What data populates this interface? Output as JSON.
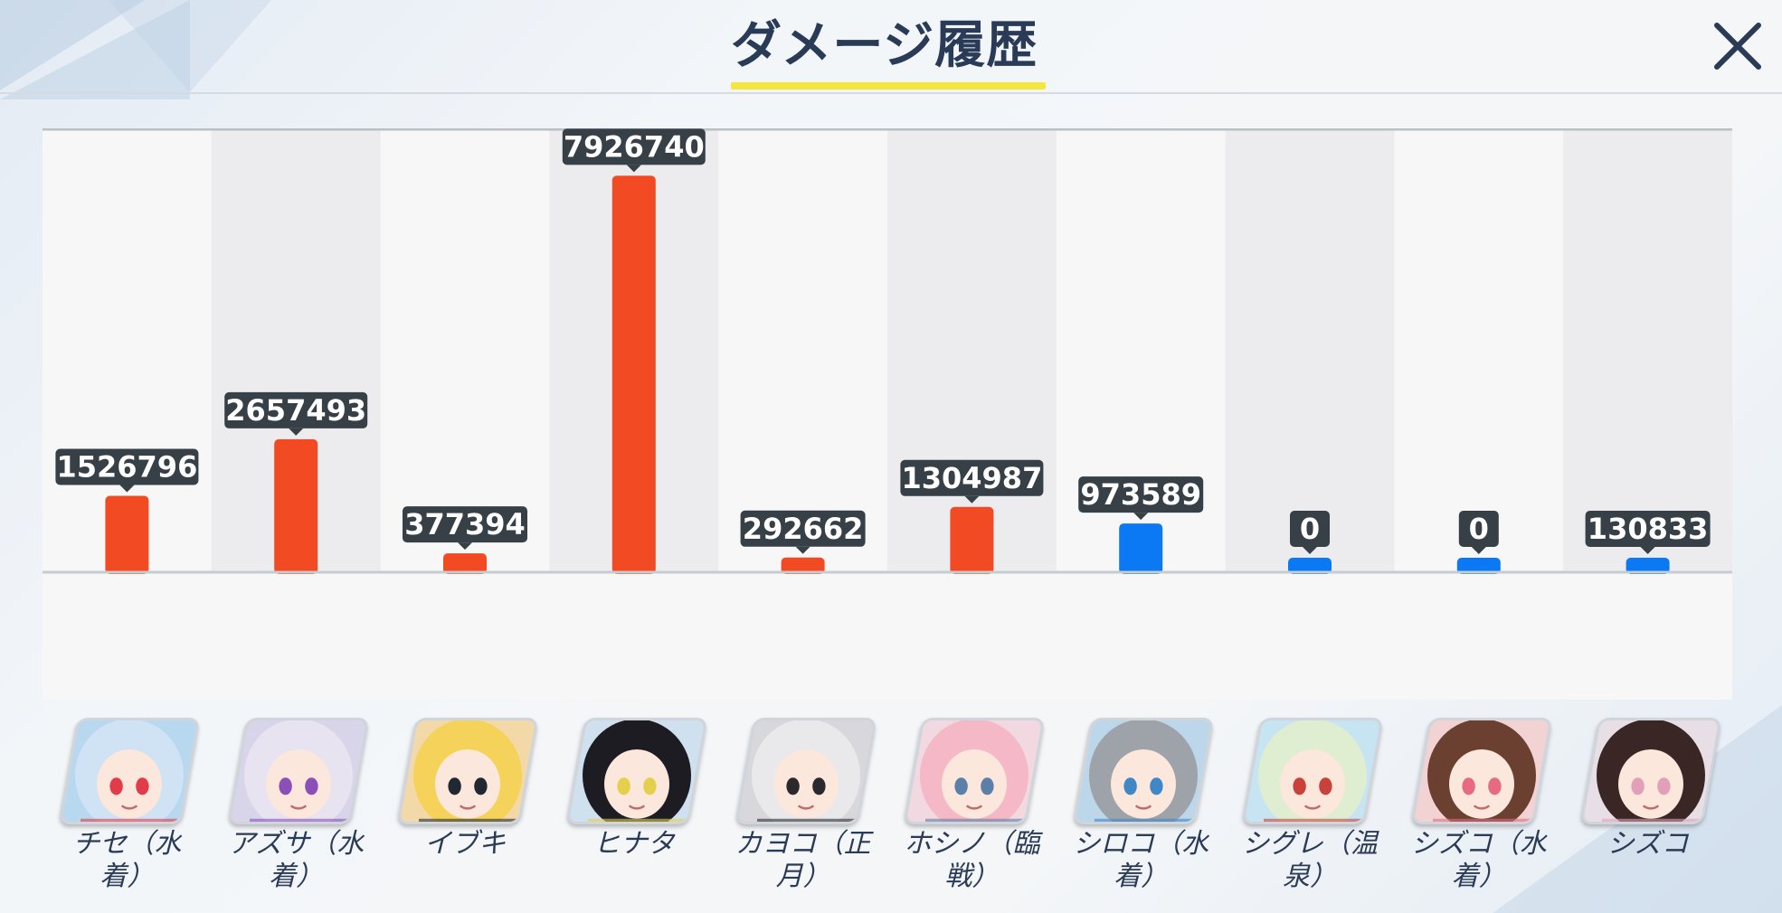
{
  "header": {
    "title": "ダメージ履歴",
    "close_icon": "close-icon"
  },
  "colors": {
    "striker": "#f24a22",
    "special": "#0a79f3",
    "label_bg": "#374047",
    "title_underline": "#f5e63c"
  },
  "chart_data": {
    "type": "bar",
    "categories": [
      "チセ（水着）",
      "アズサ（水着）",
      "イブキ",
      "ヒナタ",
      "カヨコ（正月）",
      "ホシノ（臨戦）",
      "シロコ（水着）",
      "シグレ（温泉）",
      "シズコ（水着）",
      "シズコ"
    ],
    "values": [
      1526796,
      2657493,
      377394,
      7926740,
      292662,
      1304987,
      973589,
      0,
      0,
      130833
    ],
    "bar_colors": [
      "#f24a22",
      "#f24a22",
      "#f24a22",
      "#f24a22",
      "#f24a22",
      "#f24a22",
      "#0a79f3",
      "#0a79f3",
      "#0a79f3",
      "#0a79f3"
    ],
    "data_labels": [
      "1526796",
      "2657493",
      "377394",
      "7926740",
      "292662",
      "1304987",
      "973589",
      "0",
      "0",
      "130833"
    ],
    "ylim": [
      0,
      8800000
    ],
    "grid": false
  },
  "characters": [
    {
      "label": "チセ（水\n着）",
      "hair": "#cfe3f4",
      "accent": "#e23c4b",
      "bg": "#b8d8f0"
    },
    {
      "label": "アズサ（水\n着）",
      "hair": "#e8e3f0",
      "accent": "#8b4fb8",
      "bg": "#d8d4ea"
    },
    {
      "label": "イブキ",
      "hair": "#f5d35a",
      "accent": "#222831",
      "bg": "#f3d9a8"
    },
    {
      "label": "ヒナタ",
      "hair": "#1c1c22",
      "accent": "#e5d04c",
      "bg": "#cfe0ee"
    },
    {
      "label": "カヨコ（正\n月）",
      "hair": "#e9e9ec",
      "accent": "#2a2a2e",
      "bg": "#d8d8dc"
    },
    {
      "label": "ホシノ（臨\n戦）",
      "hair": "#f5b8c6",
      "accent": "#5a7fa8",
      "bg": "#f2d8e0"
    },
    {
      "label": "シロコ（水\n着）",
      "hair": "#9ea3aa",
      "accent": "#3f87c7",
      "bg": "#bcd7ea"
    },
    {
      "label": "シグレ（温\n泉）",
      "hair": "#dfeed0",
      "accent": "#c9413b",
      "bg": "#c7e4f2"
    },
    {
      "label": "シズコ（水\n着）",
      "hair": "#6b4030",
      "accent": "#e56a82",
      "bg": "#f2d2d2"
    },
    {
      "label": "シズコ",
      "hair": "#3a2624",
      "accent": "#e2a0b8",
      "bg": "#e8dfe6"
    }
  ]
}
